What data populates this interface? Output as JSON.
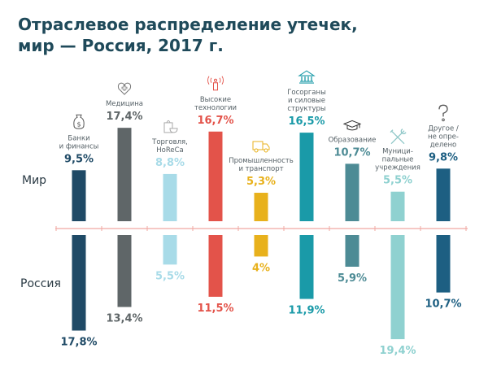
{
  "chart_data": {
    "type": "bar",
    "title": [
      "Отраслевое распределение утечек,",
      "мир — Россия, 2017 г."
    ],
    "rows": [
      "Мир",
      "Россия"
    ],
    "categories": [
      {
        "label": [
          "Банки",
          "и финансы"
        ],
        "icon": "money-bag-icon",
        "color": "#1f4a66",
        "world": 9.5,
        "russia": 17.8,
        "world_label": "9,5%",
        "russia_label": "17,8%"
      },
      {
        "label": [
          "Медицина"
        ],
        "icon": "heart-cross-icon",
        "color": "#5f6668",
        "world": 17.4,
        "russia": 13.4,
        "world_label": "17,4%",
        "russia_label": "13,4%"
      },
      {
        "label": [
          "Торговля,",
          "HoReCa"
        ],
        "icon": "shopping-bag-cup-icon",
        "color": "#a8dbe8",
        "world": 8.8,
        "russia": 5.5,
        "world_label": "8,8%",
        "russia_label": "5,5%"
      },
      {
        "label": [
          "Высокие",
          "технологии"
        ],
        "icon": "antenna-icon",
        "color": "#e3534a",
        "world": 16.7,
        "russia": 11.5,
        "world_label": "16,7%",
        "russia_label": "11,5%"
      },
      {
        "label": [
          "Промышленность",
          "и транспорт"
        ],
        "icon": "truck-icon",
        "color": "#e8b11c",
        "world": 5.3,
        "russia": 4,
        "world_label": "5,3%",
        "russia_label": "4%"
      },
      {
        "label": [
          "Госорганы",
          "и силовые",
          "структуры"
        ],
        "icon": "government-building-icon",
        "color": "#1a9aa8",
        "world": 16.5,
        "russia": 11.9,
        "world_label": "16,5%",
        "russia_label": "11,9%"
      },
      {
        "label": [
          "Образование"
        ],
        "icon": "graduation-cap-icon",
        "color": "#4d8b95",
        "world": 10.7,
        "russia": 5.9,
        "world_label": "10,7%",
        "russia_label": "5,9%"
      },
      {
        "label": [
          "Муници-",
          "пальные",
          "учреждения"
        ],
        "icon": "tools-icon",
        "color": "#8fd1d0",
        "world": 5.5,
        "russia": 19.4,
        "world_label": "5,5%",
        "russia_label": "19,4%"
      },
      {
        "label": [
          "Другое /",
          "не опре-",
          "делено"
        ],
        "icon": "question-icon",
        "color": "#1d5f82",
        "world": 9.8,
        "russia": 10.7,
        "world_label": "9,8%",
        "russia_label": "10,7%"
      }
    ],
    "axis_color": "#f0a8a2",
    "unit": "%"
  }
}
